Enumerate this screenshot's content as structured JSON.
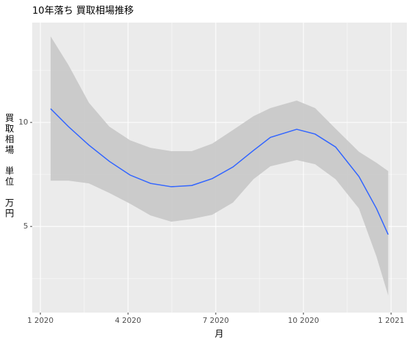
{
  "chart_data": {
    "type": "smooth",
    "title": "10年落ち 買取相場推移",
    "x_label": "月",
    "y_label": "買取相場 単位 万円",
    "x": [
      1.35,
      1.96,
      2.66,
      3.36,
      4.07,
      4.77,
      5.48,
      6.18,
      6.88,
      7.59,
      8.29,
      8.87,
      9.77,
      10.4,
      11.1,
      11.9,
      12.5,
      12.9
    ],
    "values": [
      10.66,
      9.8,
      8.91,
      8.13,
      7.47,
      7.07,
      6.91,
      6.97,
      7.3,
      7.86,
      8.65,
      9.28,
      9.67,
      9.44,
      8.82,
      7.4,
      5.86,
      4.61
    ],
    "lower": [
      7.2,
      7.2,
      7.07,
      6.61,
      6.09,
      5.53,
      5.23,
      5.36,
      5.56,
      6.15,
      7.27,
      7.89,
      8.19,
      7.99,
      7.27,
      5.86,
      3.55,
      1.68
    ],
    "upper": [
      14.14,
      12.76,
      10.95,
      9.8,
      9.14,
      8.78,
      8.62,
      8.62,
      8.98,
      9.64,
      10.3,
      10.69,
      11.05,
      10.69,
      9.7,
      8.59,
      8.06,
      7.66
    ],
    "color": "#3366ff",
    "band_color": "#c8c8c8",
    "panel_color": "#ebebeb",
    "xlim": [
      0.72,
      13.54
    ],
    "ylim": [
      0.86,
      14.8
    ],
    "xticks": [
      {
        "value": 1,
        "label": "1 2020"
      },
      {
        "value": 4,
        "label": "4 2020"
      },
      {
        "value": 7,
        "label": "7 2020"
      },
      {
        "value": 10,
        "label": "10 2020"
      },
      {
        "value": 13,
        "label": "1 2021"
      }
    ],
    "yticks": [
      5,
      10
    ],
    "grid": true,
    "minor_grid": true
  }
}
